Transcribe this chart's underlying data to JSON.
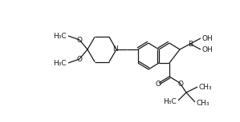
{
  "bg_color": "#ffffff",
  "line_color": "#1a1a1a",
  "line_width": 0.9,
  "font_size": 6.5,
  "fig_width": 2.99,
  "fig_height": 1.53,
  "dpi": 100,
  "xlim": [
    0,
    299
  ],
  "ylim": [
    0,
    153
  ]
}
